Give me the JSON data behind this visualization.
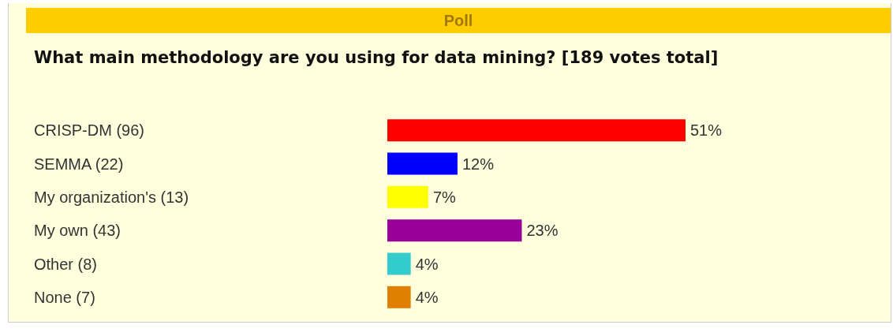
{
  "chart_data": {
    "type": "bar",
    "orientation": "horizontal",
    "title": "Poll",
    "subtitle": "What main methodology are you using for data mining? [189 votes total]",
    "categories": [
      "CRISP-DM (96)",
      "SEMMA (22)",
      "My organization's (13)",
      "My own (43)",
      "Other (8)",
      "None (7)"
    ],
    "values": [
      51,
      12,
      7,
      23,
      4,
      4
    ],
    "colors": [
      "#ff0000",
      "#0000ff",
      "#ffff00",
      "#990099",
      "#33cccc",
      "#e08000"
    ],
    "value_labels": [
      "51%",
      "12%",
      "7%",
      "23%",
      "4%",
      "4%"
    ]
  }
}
